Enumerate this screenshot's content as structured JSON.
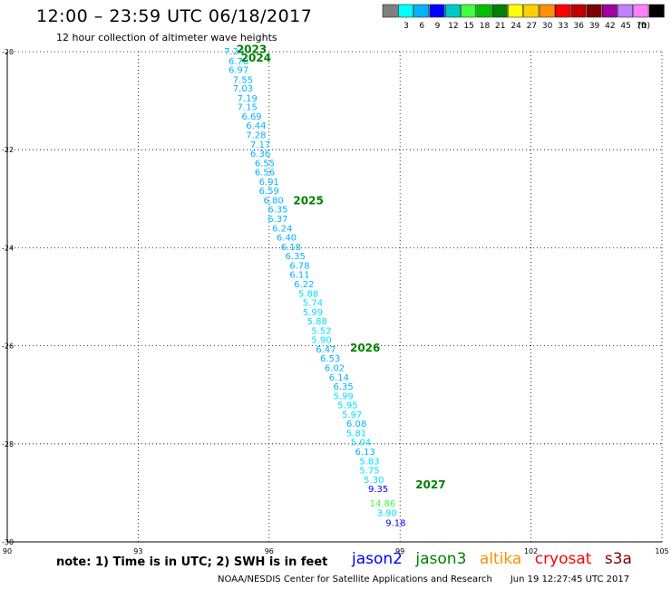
{
  "header": {
    "title": "12:00 – 23:59 UTC 06/18/2017",
    "subtitle": "12 hour collection of altimeter wave heights"
  },
  "legend": {
    "unit": "(ft)",
    "swatches": [
      {
        "label": "",
        "color": "#808080"
      },
      {
        "label": "3",
        "color": "#00ffff"
      },
      {
        "label": "6",
        "color": "#00b4ff"
      },
      {
        "label": "9",
        "color": "#0000ff"
      },
      {
        "label": "12",
        "color": "#00c8c8"
      },
      {
        "label": "15",
        "color": "#40ff40"
      },
      {
        "label": "18",
        "color": "#00c000"
      },
      {
        "label": "21",
        "color": "#008000"
      },
      {
        "label": "24",
        "color": "#ffff00"
      },
      {
        "label": "27",
        "color": "#ffd000"
      },
      {
        "label": "30",
        "color": "#ff9000"
      },
      {
        "label": "33",
        "color": "#ff0000"
      },
      {
        "label": "36",
        "color": "#c00000"
      },
      {
        "label": "39",
        "color": "#800000"
      },
      {
        "label": "42",
        "color": "#a000a0"
      },
      {
        "label": "45",
        "color": "#c080ff"
      },
      {
        "label": "70",
        "color": "#ff80ff"
      },
      {
        "label": "",
        "color": "#000000"
      }
    ]
  },
  "chart_data": {
    "type": "scatter",
    "xlim": [
      90,
      105
    ],
    "ylim": [
      -30,
      -20
    ],
    "x_ticks": [
      90,
      93,
      96,
      99,
      102,
      105
    ],
    "y_ticks": [
      -20,
      -22,
      -24,
      -26,
      -28,
      -30
    ],
    "grid": true,
    "points": [
      {
        "x": 95.2,
        "y": -20.0,
        "label": "7.24",
        "color": "#00b4ff"
      },
      {
        "x": 95.3,
        "y": -20.2,
        "label": "6.70",
        "color": "#00b4ff"
      },
      {
        "x": 95.3,
        "y": -20.38,
        "label": "6.97",
        "color": "#00b4ff"
      },
      {
        "x": 95.4,
        "y": -20.58,
        "label": "7.55",
        "color": "#00b4ff"
      },
      {
        "x": 95.4,
        "y": -20.76,
        "label": "7.03",
        "color": "#00b4ff"
      },
      {
        "x": 95.5,
        "y": -20.96,
        "label": "7.19",
        "color": "#00b4ff"
      },
      {
        "x": 95.5,
        "y": -21.14,
        "label": "7.15",
        "color": "#00b4ff"
      },
      {
        "x": 95.6,
        "y": -21.33,
        "label": "6.69",
        "color": "#00b4ff"
      },
      {
        "x": 95.7,
        "y": -21.52,
        "label": "6.44",
        "color": "#00b4ff"
      },
      {
        "x": 95.7,
        "y": -21.71,
        "label": "7.28",
        "color": "#00b4ff"
      },
      {
        "x": 95.8,
        "y": -21.9,
        "label": "7.17",
        "color": "#00b4ff"
      },
      {
        "x": 95.8,
        "y": -22.09,
        "label": "6.36",
        "color": "#00b4ff"
      },
      {
        "x": 95.9,
        "y": -22.28,
        "label": "6.55",
        "color": "#00b4ff"
      },
      {
        "x": 95.9,
        "y": -22.47,
        "label": "6.56",
        "color": "#00b4ff"
      },
      {
        "x": 96.0,
        "y": -22.66,
        "label": "6.91",
        "color": "#00b4ff"
      },
      {
        "x": 96.0,
        "y": -22.85,
        "label": "6.59",
        "color": "#00b4ff"
      },
      {
        "x": 96.1,
        "y": -23.04,
        "label": "6.80",
        "color": "#00b4ff"
      },
      {
        "x": 96.2,
        "y": -23.23,
        "label": "6.35",
        "color": "#00b4ff"
      },
      {
        "x": 96.2,
        "y": -23.42,
        "label": "6.37",
        "color": "#00b4ff"
      },
      {
        "x": 96.3,
        "y": -23.61,
        "label": "6.24",
        "color": "#00b4ff"
      },
      {
        "x": 96.4,
        "y": -23.8,
        "label": "6.40",
        "color": "#00b4ff"
      },
      {
        "x": 96.5,
        "y": -23.99,
        "label": "6.18",
        "color": "#00b4ff"
      },
      {
        "x": 96.6,
        "y": -24.18,
        "label": "6.35",
        "color": "#00b4ff"
      },
      {
        "x": 96.7,
        "y": -24.37,
        "label": "6.78",
        "color": "#00b4ff"
      },
      {
        "x": 96.7,
        "y": -24.56,
        "label": "6.11",
        "color": "#00b4ff"
      },
      {
        "x": 96.8,
        "y": -24.75,
        "label": "6.22",
        "color": "#00b4ff"
      },
      {
        "x": 96.9,
        "y": -24.94,
        "label": "5.88",
        "color": "#00e0ff"
      },
      {
        "x": 97.0,
        "y": -25.13,
        "label": "5.74",
        "color": "#00e0ff"
      },
      {
        "x": 97.0,
        "y": -25.32,
        "label": "5.99",
        "color": "#00e0ff"
      },
      {
        "x": 97.1,
        "y": -25.51,
        "label": "5.88",
        "color": "#00e0ff"
      },
      {
        "x": 97.2,
        "y": -25.7,
        "label": "5.52",
        "color": "#00e0ff"
      },
      {
        "x": 97.2,
        "y": -25.89,
        "label": "5.90",
        "color": "#00e0ff"
      },
      {
        "x": 97.3,
        "y": -26.08,
        "label": "6.47",
        "color": "#00b4ff"
      },
      {
        "x": 97.4,
        "y": -26.27,
        "label": "6.53",
        "color": "#00b4ff"
      },
      {
        "x": 97.5,
        "y": -26.46,
        "label": "6.02",
        "color": "#00b4ff"
      },
      {
        "x": 97.6,
        "y": -26.65,
        "label": "6.14",
        "color": "#00b4ff"
      },
      {
        "x": 97.7,
        "y": -26.84,
        "label": "6.35",
        "color": "#00b4ff"
      },
      {
        "x": 97.7,
        "y": -27.03,
        "label": "5.99",
        "color": "#00e0ff"
      },
      {
        "x": 97.8,
        "y": -27.22,
        "label": "5.95",
        "color": "#00e0ff"
      },
      {
        "x": 97.9,
        "y": -27.41,
        "label": "5.97",
        "color": "#00e0ff"
      },
      {
        "x": 98.0,
        "y": -27.6,
        "label": "6.08",
        "color": "#00b4ff"
      },
      {
        "x": 98.0,
        "y": -27.79,
        "label": "5.81",
        "color": "#00e0ff"
      },
      {
        "x": 98.1,
        "y": -27.98,
        "label": "5.04",
        "color": "#00e0ff"
      },
      {
        "x": 98.2,
        "y": -28.17,
        "label": "6.13",
        "color": "#00b4ff"
      },
      {
        "x": 98.3,
        "y": -28.36,
        "label": "5.83",
        "color": "#00e0ff"
      },
      {
        "x": 98.3,
        "y": -28.55,
        "label": "5.75",
        "color": "#00e0ff"
      },
      {
        "x": 98.4,
        "y": -28.74,
        "label": "5.30",
        "color": "#00e0ff"
      },
      {
        "x": 98.5,
        "y": -28.93,
        "label": "9.35",
        "color": "#0000ff"
      },
      {
        "x": 98.6,
        "y": -29.22,
        "label": "14.86",
        "color": "#40ff40"
      },
      {
        "x": 98.7,
        "y": -29.42,
        "label": "3.90",
        "color": "#00e0ff"
      },
      {
        "x": 98.9,
        "y": -29.62,
        "label": "9.18",
        "color": "#0000ff"
      }
    ],
    "track_labels": [
      {
        "x": 95.6,
        "y": -19.95,
        "label": "2023",
        "color": "#008000"
      },
      {
        "x": 95.7,
        "y": -20.13,
        "label": "2024",
        "color": "#008000"
      },
      {
        "x": 96.9,
        "y": -23.04,
        "label": "2025",
        "color": "#008000"
      },
      {
        "x": 98.2,
        "y": -26.04,
        "label": "2026",
        "color": "#008000"
      },
      {
        "x": 99.7,
        "y": -28.84,
        "label": "2027",
        "color": "#008000"
      }
    ]
  },
  "footer": {
    "note": "note: 1) Time is in UTC; 2) SWH is in feet",
    "missions": [
      {
        "name": "jason2",
        "color": "#0000ff"
      },
      {
        "name": "jason3",
        "color": "#008000"
      },
      {
        "name": "altika",
        "color": "#ff9000"
      },
      {
        "name": "cryosat",
        "color": "#ff0000"
      },
      {
        "name": "s3a",
        "color": "#800000"
      }
    ],
    "credit": "NOAA/NESDIS Center for Satellite Applications and Research",
    "timestamp": "Jun 19 12:27:45 UTC 2017"
  }
}
